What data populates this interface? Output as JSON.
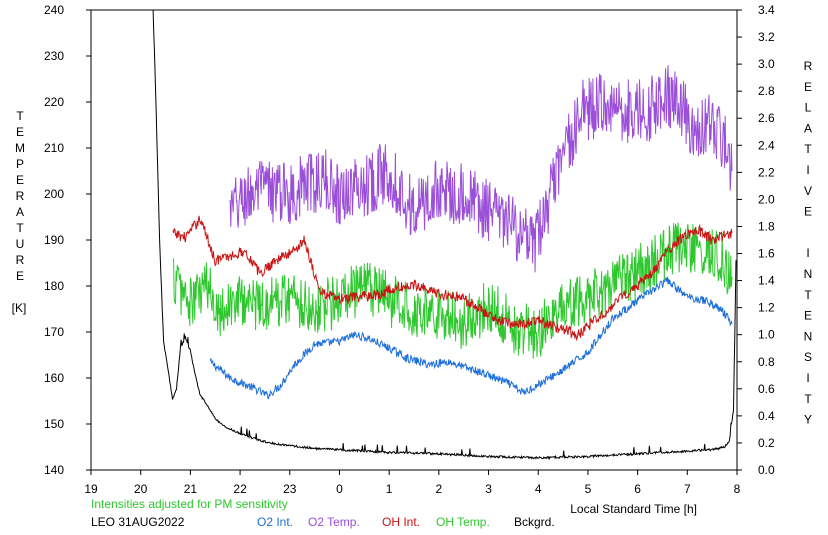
{
  "chart_data": {
    "type": "line",
    "xlabel": "Local Standard Time [h]",
    "ylabel_left": "TEMPERATURE",
    "ylabel_left_unit": "[K]",
    "ylabel_right": "RELATIVE INTENSITY",
    "x_ticks": [
      "19",
      "20",
      "21",
      "22",
      "23",
      "0",
      "1",
      "2",
      "3",
      "4",
      "5",
      "6",
      "7",
      "8"
    ],
    "x_range_hours": [
      19,
      32
    ],
    "y_left_ticks": [
      "140",
      "150",
      "160",
      "170",
      "180",
      "190",
      "200",
      "210",
      "220",
      "230",
      "240"
    ],
    "y_left_range": [
      140,
      240
    ],
    "y_right_ticks": [
      "0.0",
      "0.2",
      "0.4",
      "0.6",
      "0.8",
      "1.0",
      "1.2",
      "1.4",
      "1.6",
      "1.8",
      "2.0",
      "2.2",
      "2.4",
      "2.6",
      "2.8",
      "3.0",
      "3.2",
      "3.4"
    ],
    "y_right_range": [
      0,
      3.4
    ],
    "grid": false,
    "note": "Intensities adjusted for PM sensitivity",
    "station_date": "LEO 31AUG2022",
    "series": [
      {
        "name": "O2 Int.",
        "axis": "right",
        "color": "#1e6fd9",
        "noise": 0.03,
        "x": [
          21.4,
          21.8,
          22.3,
          22.55,
          22.8,
          23.1,
          23.5,
          24.0,
          24.3,
          24.6,
          25.0,
          25.4,
          25.8,
          26.2,
          26.6,
          27.0,
          27.4,
          27.7,
          28.0,
          28.5,
          29.0,
          29.5,
          30.0,
          30.3,
          30.6,
          31.0,
          31.4,
          31.7,
          31.9
        ],
        "y": [
          0.8,
          0.68,
          0.6,
          0.55,
          0.62,
          0.78,
          0.93,
          0.95,
          1.0,
          0.97,
          0.9,
          0.82,
          0.78,
          0.8,
          0.75,
          0.7,
          0.64,
          0.57,
          0.63,
          0.74,
          0.87,
          1.12,
          1.25,
          1.33,
          1.4,
          1.28,
          1.25,
          1.18,
          1.08
        ]
      },
      {
        "name": "O2 Temp.",
        "axis": "left",
        "color": "#9b4fd8",
        "noise": 7,
        "x": [
          21.8,
          22.2,
          22.5,
          23.0,
          23.3,
          23.7,
          24.0,
          24.5,
          25.0,
          25.5,
          26.0,
          26.5,
          27.0,
          27.5,
          27.9,
          28.2,
          28.5,
          28.9,
          29.4,
          29.8,
          30.2,
          30.6,
          30.9,
          31.2,
          31.5,
          31.8,
          31.9
        ],
        "y": [
          196,
          200,
          201,
          200,
          202,
          203,
          200,
          202,
          205,
          196,
          201,
          200,
          196,
          193,
          188,
          198,
          208,
          218,
          220,
          218,
          218,
          222,
          218,
          213,
          215,
          210,
          205
        ]
      },
      {
        "name": "OH Int.",
        "axis": "right",
        "color": "#c81414",
        "noise": 0.04,
        "x": [
          20.65,
          20.9,
          21.2,
          21.5,
          21.8,
          22.1,
          22.4,
          22.7,
          23.0,
          23.3,
          23.6,
          24.0,
          24.4,
          24.8,
          25.2,
          25.6,
          26.0,
          26.4,
          26.8,
          27.2,
          27.6,
          28.0,
          28.4,
          28.8,
          29.2,
          29.6,
          30.0,
          30.3,
          30.6,
          30.9,
          31.2,
          31.5,
          31.9
        ],
        "y": [
          1.75,
          1.72,
          1.86,
          1.55,
          1.58,
          1.62,
          1.45,
          1.55,
          1.6,
          1.7,
          1.32,
          1.26,
          1.28,
          1.3,
          1.35,
          1.37,
          1.3,
          1.28,
          1.2,
          1.1,
          1.08,
          1.1,
          1.05,
          1.0,
          1.12,
          1.25,
          1.37,
          1.45,
          1.62,
          1.72,
          1.78,
          1.7,
          1.75
        ]
      },
      {
        "name": "OH Temp.",
        "axis": "left",
        "color": "#2ec82e",
        "noise": 6,
        "x": [
          20.65,
          21.0,
          21.3,
          21.6,
          22.0,
          22.5,
          23.0,
          23.5,
          24.0,
          24.5,
          25.0,
          25.5,
          26.0,
          26.5,
          27.0,
          27.5,
          28.0,
          28.5,
          29.0,
          29.5,
          30.0,
          30.5,
          30.8,
          31.1,
          31.4,
          31.7,
          31.9
        ],
        "y": [
          182,
          176,
          180,
          175,
          177,
          176,
          178,
          175,
          177,
          180,
          177,
          175,
          174,
          172,
          176,
          171,
          170,
          175,
          177,
          180,
          183,
          186,
          189,
          188,
          187,
          186,
          182
        ]
      },
      {
        "name": "Bckgrd.",
        "axis": "right",
        "color": "#000000",
        "noise": 0.008,
        "x": [
          20.25,
          20.3,
          20.38,
          20.46,
          20.55,
          20.64,
          20.72,
          20.8,
          20.9,
          21.0,
          21.1,
          21.2,
          21.3,
          21.5,
          21.7,
          22.0,
          22.3,
          22.6,
          23.0,
          23.5,
          24.0,
          24.5,
          25.0,
          26.0,
          27.0,
          28.0,
          29.0,
          30.0,
          30.5,
          31.0,
          31.5,
          31.75,
          31.85,
          31.93,
          31.98
        ],
        "y": [
          3.4,
          2.8,
          1.7,
          0.95,
          0.75,
          0.52,
          0.6,
          0.9,
          0.98,
          0.88,
          0.7,
          0.55,
          0.5,
          0.38,
          0.32,
          0.27,
          0.23,
          0.2,
          0.18,
          0.16,
          0.15,
          0.14,
          0.13,
          0.12,
          0.1,
          0.09,
          0.1,
          0.12,
          0.13,
          0.14,
          0.15,
          0.17,
          0.22,
          0.45,
          1.55
        ]
      }
    ]
  }
}
